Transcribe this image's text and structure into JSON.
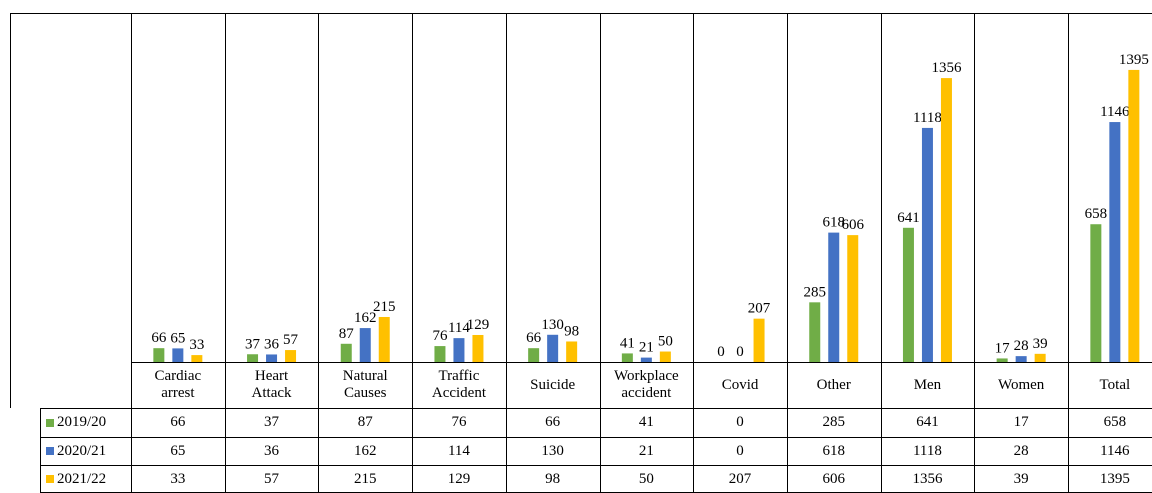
{
  "chart_data": {
    "type": "bar",
    "categories": [
      "Cardiac arrest",
      "Heart Attack",
      "Natural Causes",
      "Traffic Accident",
      "Suicide",
      "Workplace accident",
      "Covid",
      "Other",
      "Men",
      "Women",
      "Total"
    ],
    "series": [
      {
        "name": "2019/20",
        "color": "#70ad47",
        "values": [
          66,
          37,
          87,
          76,
          66,
          41,
          0,
          285,
          641,
          17,
          658
        ]
      },
      {
        "name": "2020/21",
        "color": "#4472c4",
        "values": [
          65,
          36,
          162,
          114,
          130,
          21,
          0,
          618,
          1118,
          28,
          1146
        ]
      },
      {
        "name": "2021/22",
        "color": "#ffc000",
        "values": [
          33,
          57,
          215,
          129,
          98,
          50,
          207,
          606,
          1356,
          39,
          1395
        ]
      }
    ],
    "ylim": [
      0,
      1600
    ]
  }
}
